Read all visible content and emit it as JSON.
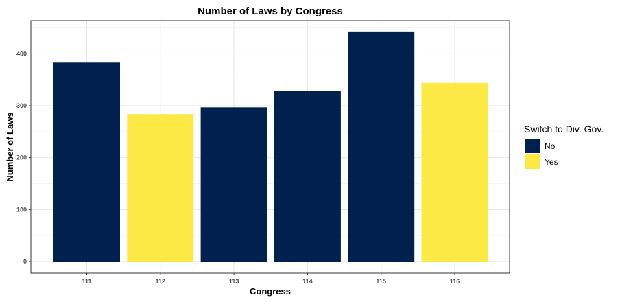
{
  "chart_data": {
    "type": "bar",
    "title": "Number of Laws by Congress",
    "xlabel": "Congress",
    "ylabel": "Number of Laws",
    "categories": [
      "111",
      "112",
      "113",
      "114",
      "115",
      "116"
    ],
    "values": [
      383,
      284,
      297,
      329,
      443,
      344
    ],
    "groups": [
      "No",
      "Yes",
      "No",
      "No",
      "No",
      "Yes"
    ],
    "ylim": [
      0,
      465
    ],
    "yticks": [
      0,
      100,
      200,
      300,
      400
    ],
    "grid": true,
    "legend": {
      "title": "Switch to Div. Gov.",
      "position": "right",
      "entries": [
        {
          "label": "No",
          "color": "#00214d"
        },
        {
          "label": "Yes",
          "color": "#fde945"
        }
      ]
    }
  }
}
